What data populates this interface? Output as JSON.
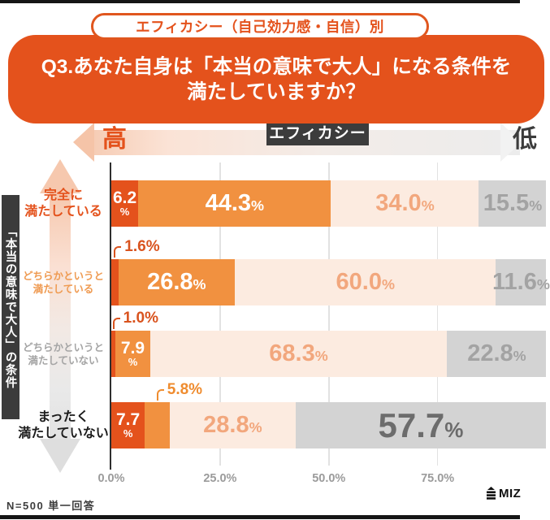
{
  "page": {
    "category_pill": "エフィカシー（自己効力感・自信）別",
    "title_lines": [
      "Q3.あなた自身は「本当の意味で大人」になる条件を",
      "満たしていますか？"
    ],
    "footnote": "N=500 単一回答",
    "logo_text": "MIZ"
  },
  "efficacy_axis": {
    "high_label": "高",
    "center_label": "エフィカシー",
    "low_label": "低"
  },
  "y_axis_title": "「本当の意味で大人」の条件",
  "colors": {
    "accent_orange": "#e4521c",
    "pill_border": "#e0561e",
    "bar_dark_orange": "#e4521c",
    "bar_orange": "#f19140",
    "bar_peach": "#fcebe0",
    "bar_gray": "#d3d3d3",
    "label_on_peach": "#f2a77d",
    "label_on_gray": "#a3a3a3",
    "label_big_gray": "#6c6c6c",
    "dark_label_box": "#3c3c3c",
    "callout_dark_orange": "#d9531e",
    "callout_orange": "#ef8c2f",
    "tick_label_gray": "#9b9b9b"
  },
  "chart_data": {
    "type": "bar",
    "stacked": true,
    "orientation": "horizontal",
    "unit": "%",
    "xlim": [
      0,
      100
    ],
    "tick_values": [
      0,
      25,
      50,
      75
    ],
    "tick_labels": [
      "0.0%",
      "25.0%",
      "50.0%",
      "75.0%"
    ],
    "grid": true,
    "categories": [
      "完全に満たしている",
      "どちらかというと満たしている",
      "どちらかというと満たしていない",
      "まったく満たしていない"
    ],
    "rows": [
      {
        "category_lines": [
          "完全に",
          "満たしている"
        ],
        "label_style": "orange-bold",
        "segments": [
          {
            "value": 6.2,
            "label": "6.2",
            "label_mode": "stacked"
          },
          {
            "value": 44.3,
            "label": "44.3%"
          },
          {
            "value": 34.0,
            "label": "34.0%"
          },
          {
            "value": 15.5,
            "label": "15.5%"
          }
        ]
      },
      {
        "category_lines": [
          "どちらかというと",
          "満たしている"
        ],
        "label_style": "orange-light",
        "segments": [
          {
            "value": 1.6,
            "callout": "1.6%"
          },
          {
            "value": 26.8,
            "label": "26.8%"
          },
          {
            "value": 60.0,
            "label": "60.0%"
          },
          {
            "value": 11.6,
            "label": "11.6%"
          }
        ]
      },
      {
        "category_lines": [
          "どちらかというと",
          "満たしていない"
        ],
        "label_style": "gray",
        "segments": [
          {
            "value": 1.0,
            "callout": "1.0%"
          },
          {
            "value": 7.9,
            "label": "7.9",
            "label_mode": "stacked"
          },
          {
            "value": 68.3,
            "label": "68.3%"
          },
          {
            "value": 22.8,
            "label": "22.8%"
          }
        ]
      },
      {
        "category_lines": [
          "まったく",
          "満たしていない"
        ],
        "label_style": "black-bold",
        "segments": [
          {
            "value": 7.7,
            "label": "7.7",
            "label_mode": "stacked"
          },
          {
            "value": 5.8,
            "callout": "5.8%"
          },
          {
            "value": 28.8,
            "label": "28.8%"
          },
          {
            "value": 57.7,
            "label": "57.7%",
            "label_mode": "big"
          }
        ]
      }
    ]
  }
}
